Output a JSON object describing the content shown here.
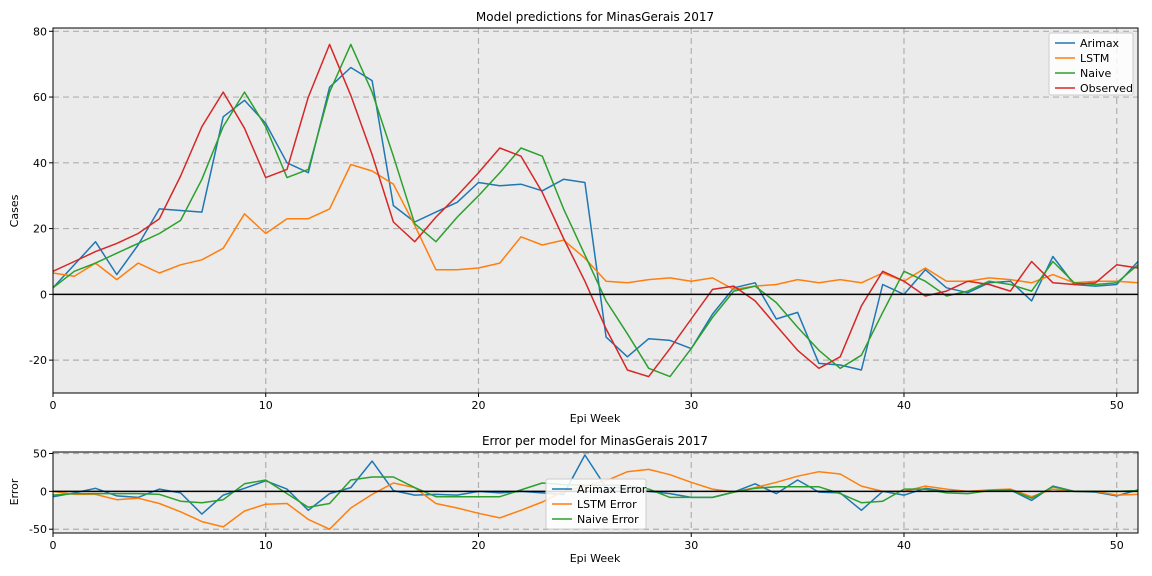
{
  "chart_data": [
    {
      "type": "line",
      "title": "Model predictions for MinasGerais 2017",
      "xlabel": "Epi Week",
      "ylabel": "Cases",
      "xlim": [
        0,
        51
      ],
      "ylim": [
        -30,
        81
      ],
      "xticks": [
        0,
        10,
        20,
        30,
        40,
        50
      ],
      "yticks": [
        -20,
        0,
        20,
        40,
        60,
        80
      ],
      "grid": true,
      "legend_position": "top-right",
      "background": "#ebebeb",
      "x": [
        0,
        1,
        2,
        3,
        4,
        5,
        6,
        7,
        8,
        9,
        10,
        11,
        12,
        13,
        14,
        15,
        16,
        17,
        18,
        19,
        20,
        21,
        22,
        23,
        24,
        25,
        26,
        27,
        28,
        29,
        30,
        31,
        32,
        33,
        34,
        35,
        36,
        37,
        38,
        39,
        40,
        41,
        42,
        43,
        44,
        45,
        46,
        47,
        48,
        49,
        50,
        51
      ],
      "series": [
        {
          "name": "Arimax",
          "color": "#1f77b4",
          "values": [
            2,
            9,
            16,
            6,
            15,
            26,
            25.5,
            25,
            54,
            59,
            52,
            40,
            37,
            63,
            69,
            65,
            27,
            22,
            25,
            28,
            34,
            33,
            33.5,
            31.5,
            35,
            34,
            -13,
            -19,
            -13.5,
            -14,
            -16.5,
            -6,
            2,
            3.5,
            -7.5,
            -5.5,
            -21,
            -21.5,
            -23,
            3,
            0,
            7.5,
            2,
            0.5,
            3.5,
            4,
            -2,
            11.5,
            3,
            2.5,
            3,
            10
          ]
        },
        {
          "name": "LSTM",
          "color": "#ff7f0e",
          "values": [
            6.5,
            5.5,
            9.5,
            4.5,
            9.5,
            6.5,
            9,
            10.5,
            14,
            24.5,
            18.5,
            23,
            23,
            26,
            39.5,
            37.5,
            33.5,
            21,
            7.5,
            7.5,
            8,
            9.5,
            17.5,
            15,
            16.5,
            11,
            4,
            3.5,
            4.5,
            5,
            4,
            5,
            1.5,
            2.5,
            3,
            4.5,
            3.5,
            4.5,
            3.5,
            6.5,
            4,
            8,
            4,
            4,
            5,
            4.5,
            3.5,
            6,
            3.5,
            4,
            4,
            3.5
          ]
        },
        {
          "name": "Naive",
          "color": "#2ca02c",
          "values": [
            2,
            7,
            9.5,
            12.5,
            15.5,
            18.5,
            22.5,
            35,
            51,
            61.5,
            51,
            35.5,
            38,
            61.5,
            76,
            61.5,
            42,
            21.5,
            16,
            23.5,
            30,
            37,
            44.5,
            42,
            26,
            12,
            -2,
            -12,
            -22.5,
            -25,
            -16.5,
            -7,
            1,
            2.5,
            -2.5,
            -10,
            -17,
            -22.5,
            -18.5,
            -5.5,
            7,
            4,
            -0.5,
            1,
            4,
            3,
            1,
            10,
            3.5,
            3,
            3.5,
            9
          ]
        },
        {
          "name": "Observed",
          "color": "#d62728",
          "values": [
            7,
            10,
            13,
            15.5,
            18.5,
            23,
            36,
            51,
            61.5,
            50.5,
            35.5,
            38,
            60,
            76,
            60.5,
            42.5,
            22,
            16,
            23.5,
            30,
            37,
            44.5,
            42,
            31,
            17,
            4,
            -10.5,
            -23,
            -25,
            -16.5,
            -7.5,
            1.5,
            2.5,
            -2,
            -9.5,
            -17,
            -22.5,
            -19,
            -3.5,
            7,
            4,
            -0.5,
            1,
            4,
            3,
            1,
            10,
            3.5,
            3,
            3.5,
            9,
            8
          ]
        }
      ]
    },
    {
      "type": "line",
      "title": "Error per model for MinasGerais 2017",
      "xlabel": "Epi Week",
      "ylabel": "Error",
      "xlim": [
        0,
        51
      ],
      "ylim": [
        -55,
        52
      ],
      "xticks": [
        0,
        10,
        20,
        30,
        40,
        50
      ],
      "yticks": [
        -50,
        0,
        50
      ],
      "grid": true,
      "legend_position": "bottom-center",
      "background": "#ebebeb",
      "x": [
        0,
        1,
        2,
        3,
        4,
        5,
        6,
        7,
        8,
        9,
        10,
        11,
        12,
        13,
        14,
        15,
        16,
        17,
        18,
        19,
        20,
        21,
        22,
        23,
        24,
        25,
        26,
        27,
        28,
        29,
        30,
        31,
        32,
        33,
        34,
        35,
        36,
        37,
        38,
        39,
        40,
        41,
        42,
        43,
        44,
        45,
        46,
        47,
        48,
        49,
        50,
        51
      ],
      "series": [
        {
          "name": "Arimax Error",
          "color": "#1f77b4",
          "values": [
            -7,
            -2,
            4,
            -6,
            -8,
            3,
            -2,
            -30,
            -5,
            4,
            14,
            3,
            -25,
            -3,
            5,
            40,
            1,
            -5,
            -4,
            -5,
            0,
            -2,
            0,
            -2,
            -4,
            48,
            5,
            5,
            0,
            -3,
            -8,
            -8,
            -1,
            10,
            -3,
            15,
            -1,
            -2,
            -25,
            0,
            -5,
            4,
            0,
            0,
            1,
            2,
            -12,
            7,
            0,
            -1,
            -6,
            2
          ]
        },
        {
          "name": "LSTM Error",
          "color": "#ff7f0e",
          "values": [
            0,
            -4,
            -4,
            -11,
            -9,
            -16,
            -27,
            -40,
            -47,
            -26,
            -17,
            -16,
            -37,
            -50,
            -22,
            -4,
            11,
            5,
            -16,
            -22,
            -29,
            -35,
            -25,
            -14,
            0,
            7,
            14,
            26,
            29,
            22,
            12,
            3,
            -1,
            5,
            12,
            20,
            26,
            23,
            7,
            0,
            0,
            7,
            3,
            0,
            2,
            3,
            -7,
            3,
            0,
            0,
            -5,
            -4
          ]
        },
        {
          "name": "Naive Error",
          "color": "#2ca02c",
          "values": [
            -5,
            -3,
            -3,
            -3,
            -3,
            -4,
            -13,
            -15,
            -11,
            10,
            15,
            -3,
            -21,
            -16,
            15,
            19,
            19,
            5,
            -7,
            -7,
            -7,
            -7,
            2,
            11,
            9,
            8,
            8,
            8,
            3,
            -8,
            -8,
            -8,
            -1,
            4,
            6,
            6,
            6,
            -3,
            -15,
            -13,
            3,
            3,
            -2,
            -3,
            1,
            2,
            -9,
            6,
            0,
            0,
            0,
            1
          ]
        }
      ]
    }
  ]
}
